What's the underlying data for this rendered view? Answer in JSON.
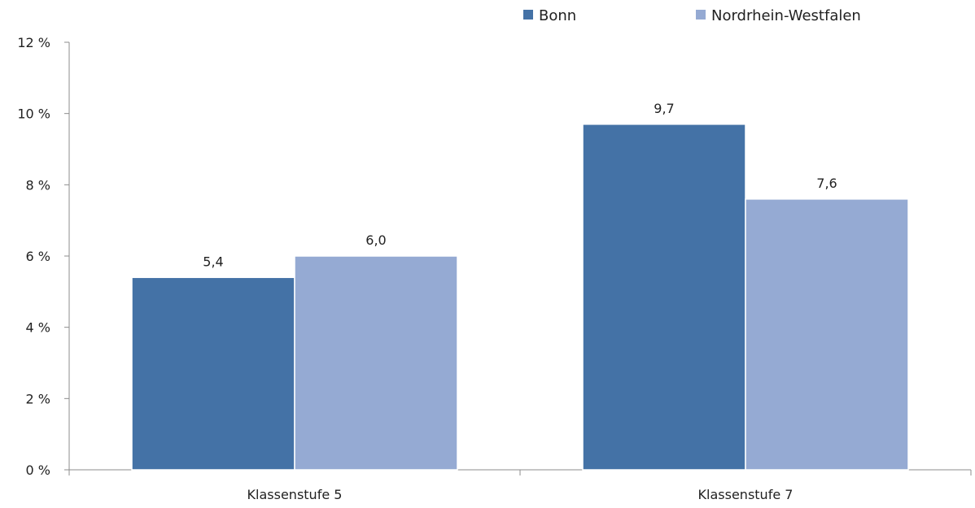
{
  "chart_data": {
    "type": "bar",
    "categories": [
      "Klassenstufe 5",
      "Klassenstufe 7"
    ],
    "series": [
      {
        "name": "Bonn",
        "values": [
          5.4,
          9.7
        ],
        "value_labels": [
          "5,4",
          "9,7"
        ],
        "color": "#4472a6"
      },
      {
        "name": "Nordrhein-Westfalen",
        "values": [
          6.0,
          7.6
        ],
        "value_labels": [
          "6,0",
          "7,6"
        ],
        "color": "#95aad3"
      }
    ],
    "ylim": [
      0,
      12
    ],
    "yticks": [
      0,
      2,
      4,
      6,
      8,
      10,
      12
    ],
    "ytick_labels": [
      "0 %",
      "2 %",
      "4 %",
      "6 %",
      "8 %",
      "10 %",
      "12 %"
    ],
    "title": "",
    "xlabel": "",
    "ylabel": "",
    "grid": false,
    "legend_position": "top-right"
  }
}
